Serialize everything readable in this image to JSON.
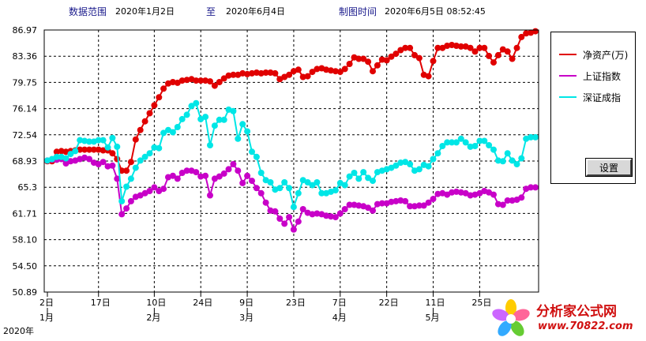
{
  "header": {
    "range_label": "数据范围",
    "range_start": "2020年1月2日",
    "to_label": "至",
    "range_end": "2020年6月4日",
    "plot_time_label": "制图时间",
    "plot_time": "2020年6月5日  08:52:45"
  },
  "legend": {
    "items": [
      {
        "label": "净资产(万)",
        "color": "#e00000"
      },
      {
        "label": "上证指数",
        "color": "#c800c8"
      },
      {
        "label": "深证成指",
        "color": "#00e6e6"
      }
    ],
    "settings_label": "设置"
  },
  "watermark": {
    "title": "分析家公式网",
    "url": "www.70822.com"
  },
  "chart_data": {
    "type": "line",
    "title": "",
    "ylim": [
      50.89,
      86.97
    ],
    "y_ticks": [
      "86.97",
      "83.36",
      "79.75",
      "76.14",
      "72.54",
      "68.93",
      "65.3",
      "61.71",
      "58.10",
      "54.50",
      "50.89"
    ],
    "x_tick_labels": [
      {
        "label": "2日",
        "sub": "1月",
        "index": 0
      },
      {
        "label": "17日",
        "sub": "",
        "index": 11
      },
      {
        "label": "10日",
        "sub": "2月",
        "index": 23
      },
      {
        "label": "24日",
        "sub": "",
        "index": 33
      },
      {
        "label": "9日",
        "sub": "3月",
        "index": 43
      },
      {
        "label": "23日",
        "sub": "",
        "index": 53
      },
      {
        "label": "7日",
        "sub": "4月",
        "index": 63
      },
      {
        "label": "22日",
        "sub": "",
        "index": 73
      },
      {
        "label": "11日",
        "sub": "5月",
        "index": 83
      },
      {
        "label": "25日",
        "sub": "",
        "index": 93
      }
    ],
    "year_label": "2020年",
    "grid": true,
    "legend_position": "right",
    "series": [
      {
        "name": "净资产(万)",
        "color": "#e00000",
        "values": [
          68.9,
          68.9,
          70.2,
          70.3,
          70.2,
          70.3,
          70.4,
          70.5,
          70.5,
          70.5,
          70.5,
          70.5,
          70.4,
          70.4,
          70.0,
          69.2,
          67.6,
          67.6,
          68.8,
          71.9,
          73.2,
          74.4,
          75.5,
          76.6,
          77.7,
          78.9,
          79.6,
          79.8,
          79.7,
          80.0,
          80.1,
          80.2,
          80.0,
          80.0,
          80.0,
          79.9,
          79.3,
          79.8,
          80.3,
          80.7,
          80.8,
          80.8,
          81.0,
          80.9,
          81.0,
          81.1,
          81.0,
          81.1,
          81.1,
          81.0,
          80.2,
          80.5,
          80.8,
          81.3,
          81.5,
          80.5,
          80.6,
          81.2,
          81.6,
          81.7,
          81.5,
          81.4,
          81.3,
          81.2,
          81.6,
          82.3,
          83.2,
          83.0,
          83.0,
          82.6,
          81.3,
          82.1,
          82.9,
          82.8,
          83.3,
          83.7,
          84.2,
          84.5,
          84.5,
          83.5,
          83.1,
          80.8,
          80.6,
          82.7,
          84.5,
          84.5,
          84.8,
          84.9,
          84.8,
          84.7,
          84.7,
          84.5,
          84.0,
          84.5,
          84.5,
          83.4,
          82.5,
          83.5,
          84.3,
          84.0,
          83.0,
          84.5,
          86.0,
          86.5,
          86.6,
          86.8
        ]
      },
      {
        "name": "上证指数",
        "color": "#c800c8",
        "values": [
          69.0,
          69.1,
          69.1,
          69.2,
          68.6,
          68.9,
          69.0,
          69.2,
          69.4,
          69.2,
          68.7,
          68.5,
          68.8,
          68.2,
          68.3,
          66.5,
          61.6,
          62.4,
          63.4,
          64.0,
          64.2,
          64.5,
          64.8,
          65.3,
          64.8,
          65.1,
          66.7,
          66.9,
          66.5,
          67.3,
          67.6,
          67.6,
          67.4,
          66.8,
          66.9,
          64.2,
          66.5,
          66.8,
          67.2,
          67.8,
          68.5,
          67.6,
          65.9,
          66.9,
          66.2,
          65.2,
          64.5,
          63.2,
          62.1,
          62.0,
          61.0,
          60.3,
          61.2,
          59.5,
          60.6,
          62.3,
          61.8,
          61.6,
          61.7,
          61.6,
          61.4,
          61.3,
          61.2,
          61.7,
          62.3,
          62.9,
          62.9,
          62.8,
          62.7,
          62.5,
          62.1,
          63.0,
          63.1,
          63.1,
          63.3,
          63.4,
          63.5,
          63.4,
          62.7,
          62.7,
          62.8,
          62.8,
          63.2,
          63.7,
          64.4,
          64.5,
          64.3,
          64.6,
          64.7,
          64.6,
          64.5,
          64.2,
          64.3,
          64.5,
          64.8,
          64.6,
          64.3,
          63.0,
          62.9,
          63.5,
          63.5,
          63.6,
          63.9,
          65.1,
          65.3,
          65.3
        ]
      },
      {
        "name": "深证成指",
        "color": "#00e6e6",
        "values": [
          69.0,
          69.2,
          69.5,
          69.5,
          69.3,
          69.9,
          70.3,
          71.8,
          71.7,
          71.6,
          71.6,
          71.8,
          71.8,
          70.8,
          72.1,
          70.9,
          63.4,
          65.4,
          66.5,
          68.0,
          69.0,
          69.5,
          70.0,
          70.8,
          70.7,
          72.8,
          73.2,
          72.9,
          73.6,
          74.7,
          75.3,
          76.5,
          76.9,
          74.7,
          75.0,
          71.1,
          73.8,
          74.6,
          74.6,
          76.0,
          75.8,
          72.0,
          74.0,
          73.0,
          70.2,
          69.5,
          67.3,
          66.3,
          66.0,
          65.0,
          65.2,
          66.0,
          65.2,
          62.6,
          64.5,
          66.3,
          66.0,
          65.6,
          66.0,
          64.5,
          64.5,
          64.7,
          64.9,
          65.9,
          65.6,
          66.8,
          67.3,
          66.5,
          67.4,
          66.6,
          66.2,
          67.4,
          67.6,
          67.8,
          68.0,
          68.3,
          68.7,
          68.8,
          68.5,
          67.6,
          67.8,
          68.4,
          68.2,
          69.2,
          70.0,
          71.0,
          71.5,
          71.5,
          71.5,
          72.0,
          71.5,
          70.9,
          71.0,
          71.7,
          71.7,
          71.1,
          70.5,
          69.0,
          68.9,
          70.0,
          69.0,
          68.5,
          69.3,
          72.0,
          72.2,
          72.2
        ]
      }
    ]
  }
}
